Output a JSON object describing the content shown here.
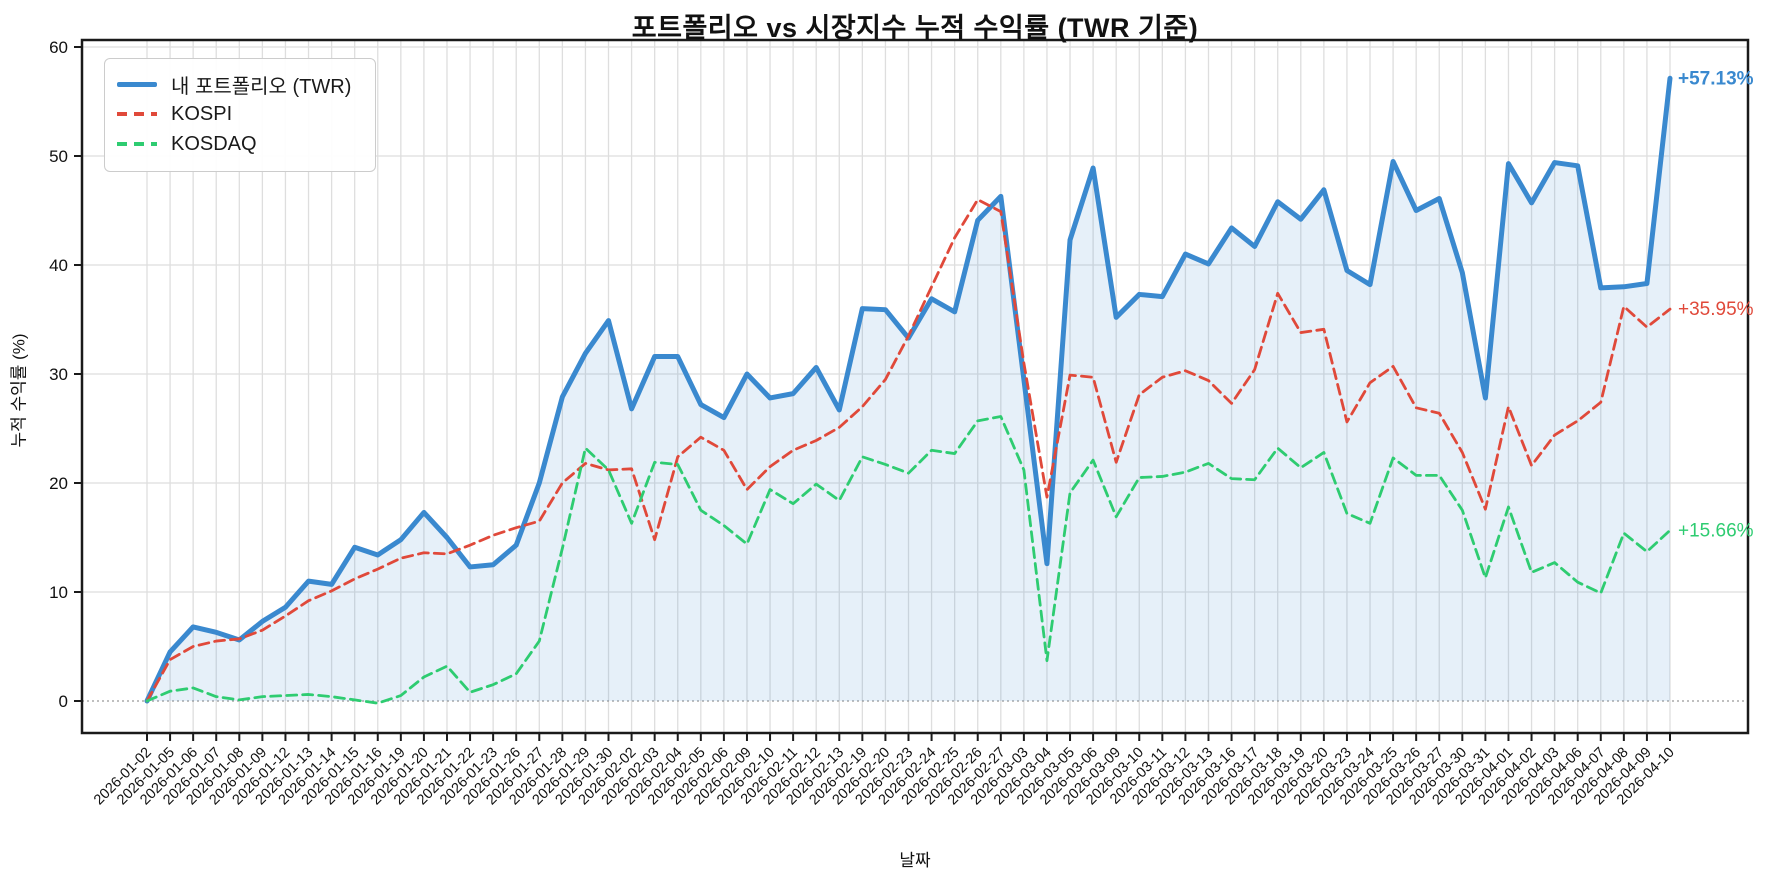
{
  "title": "포트폴리오 vs 시장지수 누적 수익률 (TWR 기준)",
  "chart_data": {
    "type": "line",
    "title": "포트폴리오 vs 시장지수 누적 수익률 (TWR 기준)",
    "xlabel": "날짜",
    "ylabel": "누적 수익률 (%)",
    "ylim": [
      -3,
      60.8
    ],
    "yticks": [
      0,
      10,
      20,
      30,
      40,
      50,
      60
    ],
    "grid": true,
    "legend_position": "upper-left",
    "zero_line": "dotted",
    "categories": [
      "2026-01-02",
      "2026-01-05",
      "2026-01-06",
      "2026-01-07",
      "2026-01-08",
      "2026-01-09",
      "2026-01-12",
      "2026-01-13",
      "2026-01-14",
      "2026-01-15",
      "2026-01-16",
      "2026-01-19",
      "2026-01-20",
      "2026-01-21",
      "2026-01-22",
      "2026-01-23",
      "2026-01-26",
      "2026-01-27",
      "2026-01-28",
      "2026-01-29",
      "2026-01-30",
      "2026-02-02",
      "2026-02-03",
      "2026-02-04",
      "2026-02-05",
      "2026-02-06",
      "2026-02-09",
      "2026-02-10",
      "2026-02-11",
      "2026-02-12",
      "2026-02-13",
      "2026-02-19",
      "2026-02-20",
      "2026-02-23",
      "2026-02-24",
      "2026-02-25",
      "2026-02-26",
      "2026-02-27",
      "2026-03-03",
      "2026-03-04",
      "2026-03-05",
      "2026-03-06",
      "2026-03-09",
      "2026-03-10",
      "2026-03-11",
      "2026-03-12",
      "2026-03-13",
      "2026-03-16",
      "2026-03-17",
      "2026-03-18",
      "2026-03-19",
      "2026-03-20",
      "2026-03-23",
      "2026-03-24",
      "2026-03-25",
      "2026-03-26",
      "2026-03-27",
      "2026-03-30",
      "2026-03-31",
      "2026-04-01",
      "2026-04-02",
      "2026-04-03",
      "2026-04-06",
      "2026-04-07",
      "2026-04-08",
      "2026-04-09",
      "2026-04-10"
    ],
    "series": [
      {
        "name": "내 포트폴리오 (TWR)",
        "color": "#3a89cf",
        "style": "solid",
        "line_width": 5,
        "area_fill": "rgba(58,137,207,0.13)",
        "values": [
          0.0,
          4.5,
          6.8,
          6.3,
          5.6,
          7.3,
          8.6,
          11.0,
          10.7,
          14.1,
          13.4,
          14.8,
          17.3,
          15.0,
          12.3,
          12.5,
          14.3,
          20.0,
          27.9,
          31.9,
          34.9,
          26.8,
          31.6,
          31.6,
          27.2,
          26.0,
          30.0,
          27.8,
          28.2,
          30.6,
          26.7,
          36.0,
          35.9,
          33.3,
          36.9,
          35.7,
          44.1,
          46.3,
          29.5,
          12.6,
          42.3,
          48.9,
          35.2,
          37.3,
          37.1,
          41.0,
          40.1,
          43.4,
          41.7,
          45.8,
          44.2,
          46.9,
          39.5,
          38.2,
          49.5,
          45.0,
          46.1,
          39.3,
          27.8,
          49.3,
          45.7,
          49.4,
          49.1,
          37.9,
          38.0,
          38.3,
          57.13
        ]
      },
      {
        "name": "KOSPI",
        "color": "#e0493a",
        "style": "dashed",
        "line_width": 2.8,
        "values": [
          0.0,
          3.8,
          5.0,
          5.5,
          5.7,
          6.5,
          7.8,
          9.2,
          10.1,
          11.2,
          12.1,
          13.1,
          13.6,
          13.5,
          14.3,
          15.2,
          15.9,
          16.5,
          20.0,
          21.8,
          21.2,
          21.3,
          14.8,
          22.4,
          24.2,
          23.0,
          19.4,
          21.5,
          23.0,
          23.9,
          25.1,
          27.0,
          29.5,
          33.5,
          38.0,
          42.5,
          46.0,
          44.9,
          31.0,
          18.7,
          29.9,
          29.7,
          21.9,
          28.1,
          29.7,
          30.3,
          29.4,
          27.3,
          30.4,
          37.4,
          33.8,
          34.1,
          25.6,
          29.2,
          30.7,
          26.9,
          26.4,
          22.8,
          17.6,
          27.0,
          21.6,
          24.4,
          25.7,
          27.4,
          36.2,
          34.3,
          35.95
        ]
      },
      {
        "name": "KOSDAQ",
        "color": "#2ecc71",
        "style": "dashed",
        "line_width": 2.8,
        "values": [
          0.0,
          0.9,
          1.2,
          0.4,
          0.1,
          0.4,
          0.5,
          0.6,
          0.4,
          0.1,
          -0.2,
          0.5,
          2.2,
          3.2,
          0.8,
          1.5,
          2.5,
          5.5,
          14.0,
          23.2,
          21.2,
          16.3,
          21.9,
          21.7,
          17.5,
          16.1,
          14.4,
          19.4,
          18.1,
          19.9,
          18.4,
          22.4,
          21.7,
          20.9,
          23.0,
          22.7,
          25.7,
          26.1,
          21.2,
          3.7,
          19.1,
          22.1,
          16.9,
          20.5,
          20.6,
          21.0,
          21.8,
          20.4,
          20.3,
          23.2,
          21.4,
          22.8,
          17.2,
          16.3,
          22.3,
          20.7,
          20.7,
          17.5,
          11.3,
          17.8,
          11.8,
          12.7,
          10.9,
          9.9,
          15.4,
          13.7,
          15.66
        ]
      }
    ],
    "end_labels": [
      {
        "text": "+57.13%",
        "value": 57.13,
        "color": "#3a89cf",
        "bold": true
      },
      {
        "text": "+35.95%",
        "value": 35.95,
        "color": "#e0493a",
        "bold": false
      },
      {
        "text": "+15.66%",
        "value": 15.66,
        "color": "#2ecc71",
        "bold": false
      }
    ],
    "style": {
      "grid_color": "#dedede",
      "zero_line_color": "#999999",
      "border_color": "#1a1a1a",
      "tick_label_color": "#111111",
      "x_tick_font": 14.5,
      "y_tick_font": 17
    }
  }
}
